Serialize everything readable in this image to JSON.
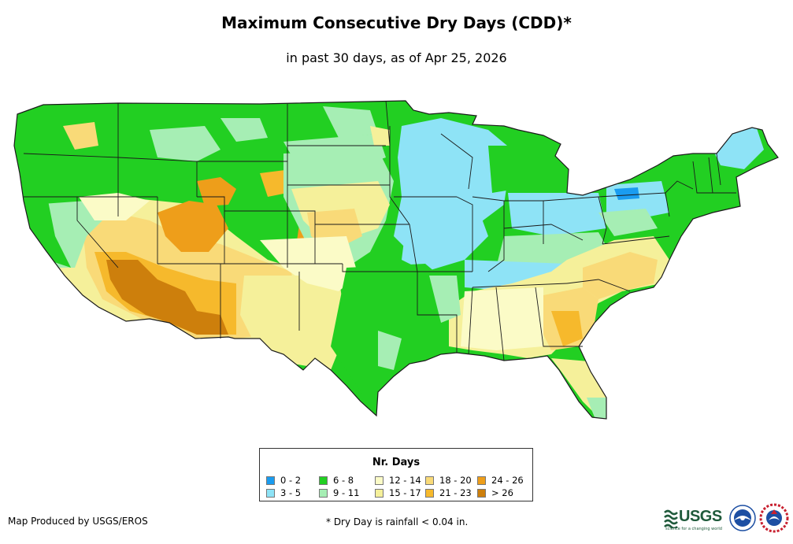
{
  "title": "Maximum Consecutive Dry Days (CDD)*",
  "subtitle": "in past 30 days, as of Apr 25, 2026",
  "legend": {
    "title": "Nr. Days",
    "items": [
      {
        "label": "0 - 2",
        "color": "#1a9cf0"
      },
      {
        "label": "3 - 5",
        "color": "#8ee3f6"
      },
      {
        "label": "6 - 8",
        "color": "#22cf22"
      },
      {
        "label": "9 - 11",
        "color": "#a6eeb4"
      },
      {
        "label": "12 - 14",
        "color": "#fbfbc7"
      },
      {
        "label": "15 - 17",
        "color": "#f5f09a"
      },
      {
        "label": "18 - 20",
        "color": "#f9da78"
      },
      {
        "label": "21 - 23",
        "color": "#f6b92c"
      },
      {
        "label": "24 - 26",
        "color": "#ee9e1a"
      },
      {
        "label": "> 26",
        "color": "#cd7f0c"
      }
    ]
  },
  "footer": {
    "credit": "Map Produced by USGS/EROS",
    "note": "* Dry Day is rainfall < 0.04 in."
  },
  "logos": {
    "usgs_text": "USGS",
    "usgs_tagline": "science for a changing world"
  },
  "colors": {
    "border": "#1a1a1a",
    "legend_border": "#333333",
    "usgs_green": "#1f5a3b",
    "noaa_blue": "#1d4fa3"
  }
}
